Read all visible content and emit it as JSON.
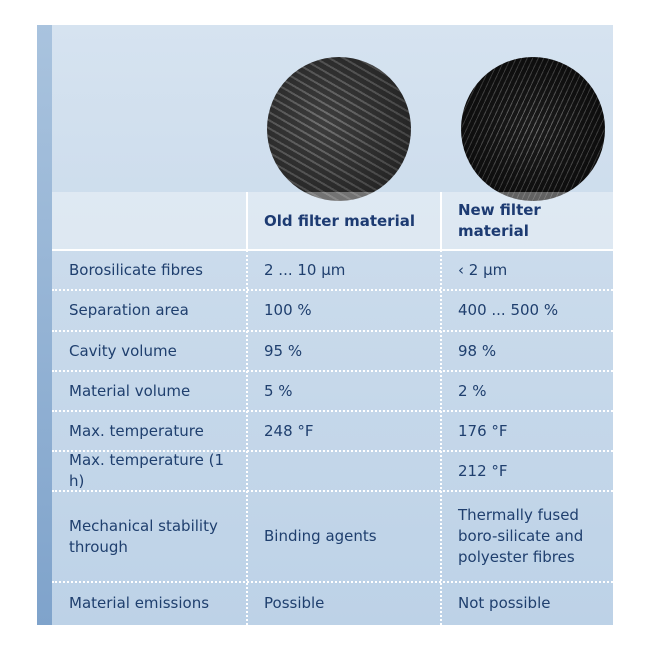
{
  "table": {
    "header": [
      "Old filter material",
      "New filter material"
    ],
    "rows": [
      [
        "Borosilicate fibres",
        "2 ... 10 µm",
        "‹ 2 µm"
      ],
      [
        "Separation area",
        "100 %",
        "400 ... 500 %"
      ],
      [
        "Cavity volume",
        "95 %",
        "98 %"
      ],
      [
        "Material volume",
        "5 %",
        "2 %"
      ],
      [
        "Max. temperature",
        "248 °F",
        "176 °F"
      ],
      [
        "Max. temperature (1 h)",
        null,
        "212 °F"
      ],
      [
        "Mechanical stability through",
        "Binding agents",
        "Thermally fused boro-silicate and polyester fibres"
      ],
      [
        "Material emissions",
        "Possible",
        "Not possible"
      ]
    ]
  }
}
